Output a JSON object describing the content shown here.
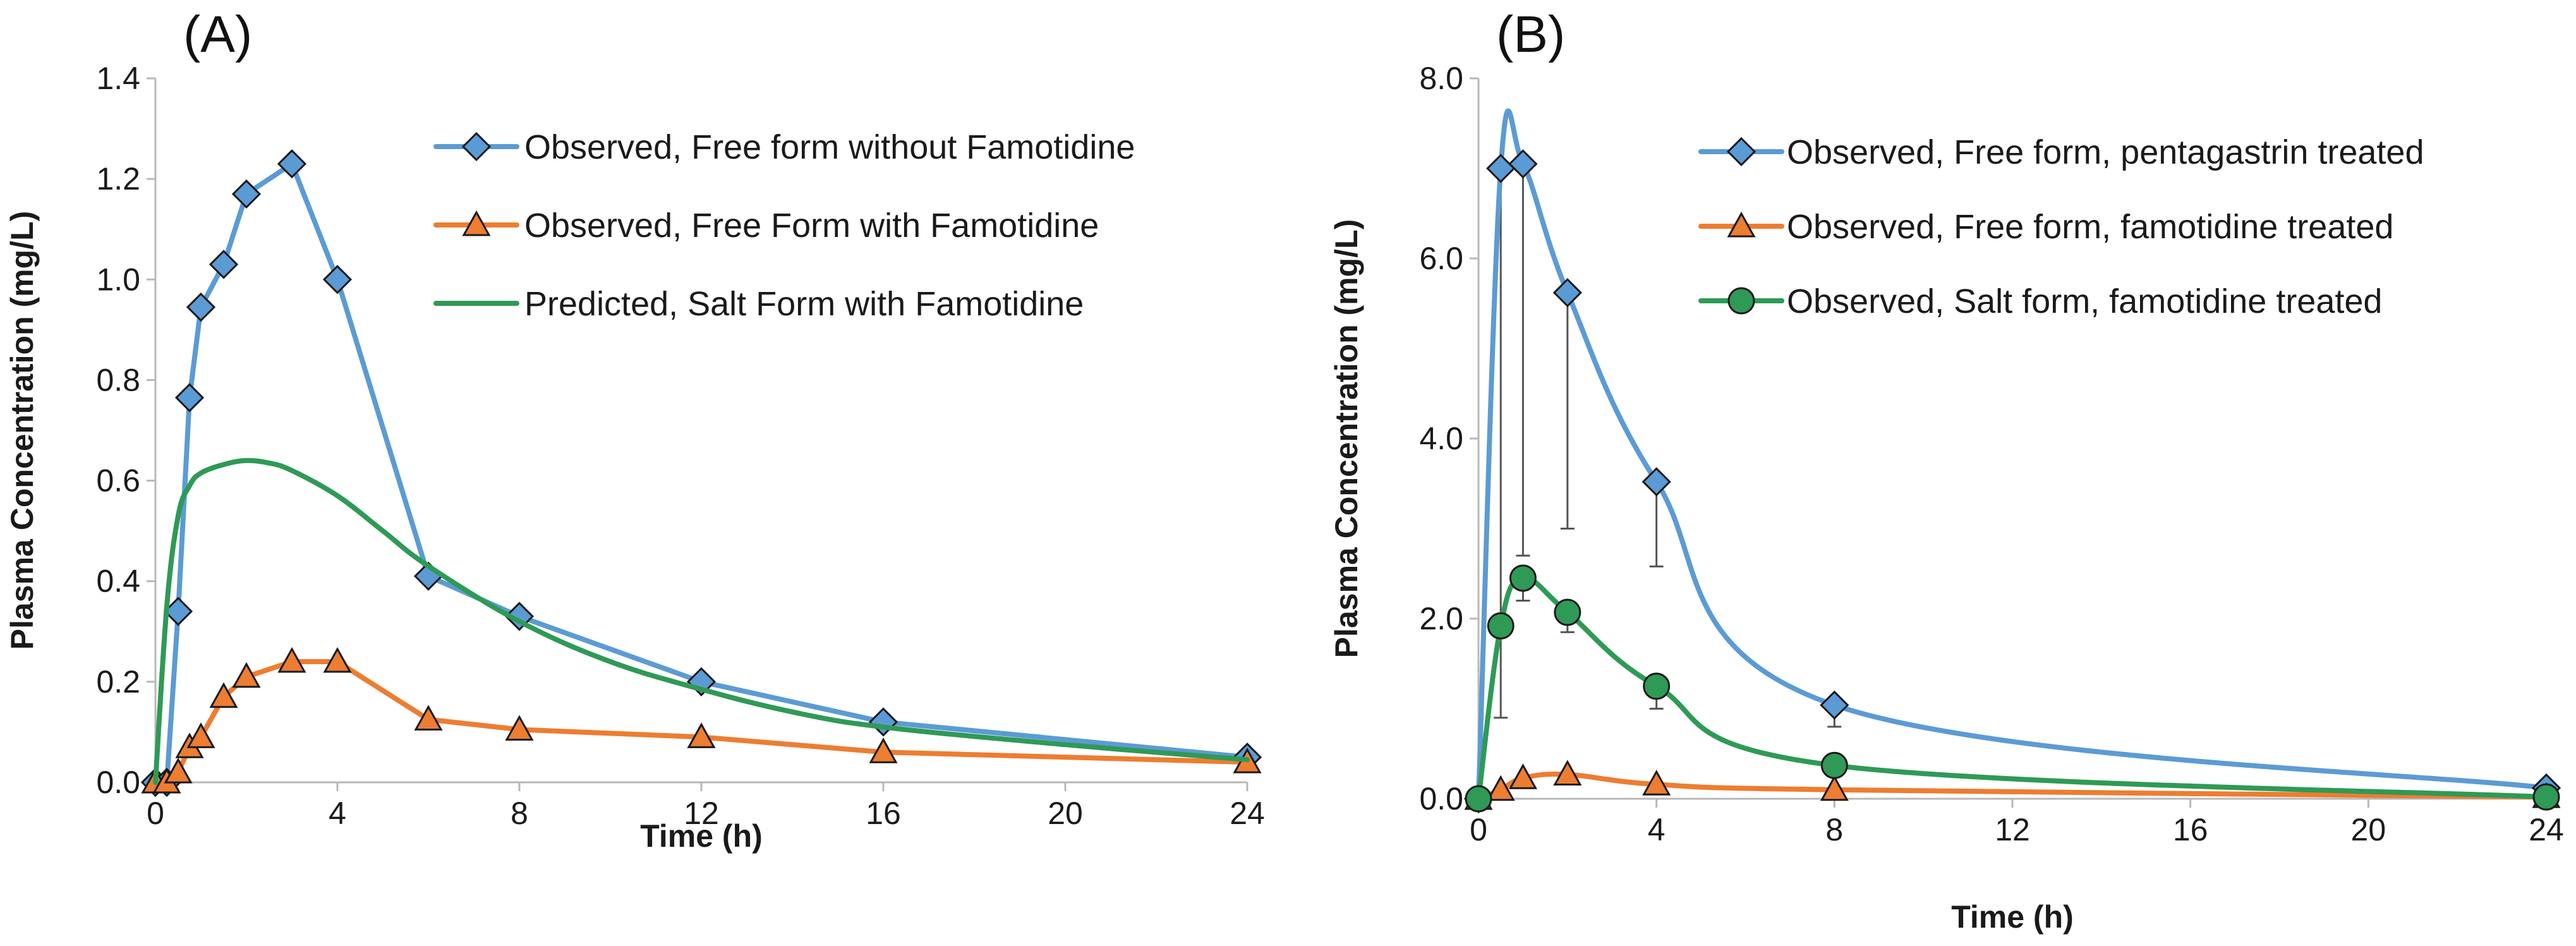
{
  "colors": {
    "blue": "#5b9bd5",
    "orange": "#ed7d31",
    "green": "#2e9a56",
    "axis": "#b8b8b8",
    "text": "#1a1a1a"
  },
  "chart_data": [
    {
      "type": "line",
      "panel_label": "(A)",
      "xlabel": "Time (h)",
      "ylabel": "Plasma Concentration (mg/L)",
      "xlim": [
        0,
        24
      ],
      "ylim": [
        0,
        1.4
      ],
      "x_ticks": [
        "0",
        "4",
        "8",
        "12",
        "16",
        "20",
        "24"
      ],
      "y_ticks": [
        "0.0",
        "0.2",
        "0.4",
        "0.6",
        "0.8",
        "1.0",
        "1.2",
        "1.4"
      ],
      "grid": false,
      "legend_position": "top-right",
      "series": [
        {
          "name": "Observed, Free form without Famotidine",
          "color": "#5b9bd5",
          "marker": "diamond",
          "style": "straight",
          "x": [
            0,
            0.25,
            0.5,
            0.75,
            1,
            1.5,
            2,
            3,
            4,
            6,
            8,
            12,
            16,
            24
          ],
          "y": [
            0,
            0,
            0.34,
            0.765,
            0.945,
            1.03,
            1.17,
            1.23,
            1.0,
            0.41,
            0.33,
            0.2,
            0.12,
            0.05
          ]
        },
        {
          "name": "Observed, Free Form with Famotidine",
          "color": "#ed7d31",
          "marker": "triangle",
          "style": "straight",
          "x": [
            0,
            0.25,
            0.5,
            0.75,
            1,
            1.5,
            2,
            3,
            4,
            6,
            8,
            12,
            16,
            24
          ],
          "y": [
            0,
            0,
            0.02,
            0.07,
            0.09,
            0.17,
            0.21,
            0.24,
            0.24,
            0.125,
            0.105,
            0.09,
            0.06,
            0.04
          ]
        },
        {
          "name": "Predicted, Salt Form with Famotidine",
          "color": "#2e9a56",
          "marker": "none",
          "style": "smooth",
          "x": [
            0,
            0.25,
            0.5,
            0.75,
            1,
            1.5,
            2,
            2.5,
            3,
            4,
            5,
            6,
            8,
            10,
            12,
            14,
            16,
            20,
            24
          ],
          "y": [
            0,
            0.35,
            0.53,
            0.59,
            0.615,
            0.632,
            0.64,
            0.635,
            0.62,
            0.57,
            0.5,
            0.43,
            0.32,
            0.24,
            0.185,
            0.14,
            0.11,
            0.075,
            0.045
          ]
        }
      ]
    },
    {
      "type": "line",
      "panel_label": "(B)",
      "xlabel": "Time (h)",
      "ylabel": "Plasma Concentration (mg/L)",
      "xlim": [
        0,
        24
      ],
      "ylim": [
        0,
        8
      ],
      "x_ticks": [
        "0",
        "4",
        "8",
        "12",
        "16",
        "20",
        "24"
      ],
      "y_ticks": [
        "0.0",
        "2.0",
        "4.0",
        "6.0",
        "8.0"
      ],
      "grid": false,
      "legend_position": "top-right",
      "series": [
        {
          "name": "Observed, Free form, pentagastrin treated",
          "color": "#5b9bd5",
          "marker": "diamond",
          "style": "smooth",
          "x": [
            0,
            0.5,
            1,
            2,
            4,
            8,
            24
          ],
          "y": [
            0,
            7.0,
            7.05,
            5.62,
            3.52,
            1.04,
            0.12
          ],
          "error_low": [
            null,
            0.9,
            2.7,
            3.0,
            2.58,
            0.8,
            null
          ],
          "error_high": [
            null,
            null,
            null,
            null,
            null,
            null,
            null
          ]
        },
        {
          "name": "Observed, Free form, famotidine treated",
          "color": "#ed7d31",
          "marker": "triangle",
          "style": "smooth",
          "x": [
            0,
            0.5,
            1,
            2,
            4,
            8,
            24
          ],
          "y": [
            0,
            0.1,
            0.23,
            0.27,
            0.16,
            0.1,
            0.02
          ]
        },
        {
          "name": "Observed, Salt form, famotidine treated",
          "color": "#2e9a56",
          "marker": "circle",
          "style": "smooth",
          "x": [
            0,
            0.5,
            1,
            2,
            4,
            8,
            24
          ],
          "y": [
            0,
            1.92,
            2.45,
            2.07,
            1.25,
            0.37,
            0.02
          ],
          "error_low": [
            null,
            null,
            2.2,
            1.85,
            1.0,
            null,
            null
          ],
          "error_high": [
            null,
            null,
            null,
            null,
            null,
            null,
            null
          ]
        }
      ]
    }
  ]
}
